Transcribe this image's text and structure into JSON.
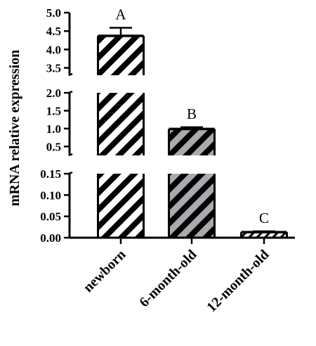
{
  "chart_data": {
    "type": "bar",
    "ylabel": "mRNA relative expression",
    "categories": [
      "newborn",
      "6-month-old",
      "12-month-old"
    ],
    "values": [
      4.37,
      0.99,
      0.013
    ],
    "errors": [
      0.22,
      0.05,
      0.002
    ],
    "significance": [
      "A",
      "B",
      "C"
    ],
    "y_axis_breaks": [
      {
        "range": [
          3.3,
          5.0
        ],
        "ticks": [
          "3.5",
          "4.0",
          "4.5",
          "5.0"
        ]
      },
      {
        "range": [
          0.25,
          2.0
        ],
        "ticks": [
          "0.5",
          "1.0",
          "1.5",
          "2.0"
        ]
      },
      {
        "range": [
          0.0,
          0.15
        ],
        "ticks": [
          "0.00",
          "0.05",
          "0.10",
          "0.15"
        ]
      }
    ],
    "bar_styles": [
      {
        "fill": "#ffffff",
        "stripe": "#000000"
      },
      {
        "fill": "#a9a9ae",
        "stripe": "#000000"
      },
      {
        "fill": "#ffffff",
        "stripe": "#000000"
      }
    ],
    "grid": false,
    "legend": "none"
  }
}
